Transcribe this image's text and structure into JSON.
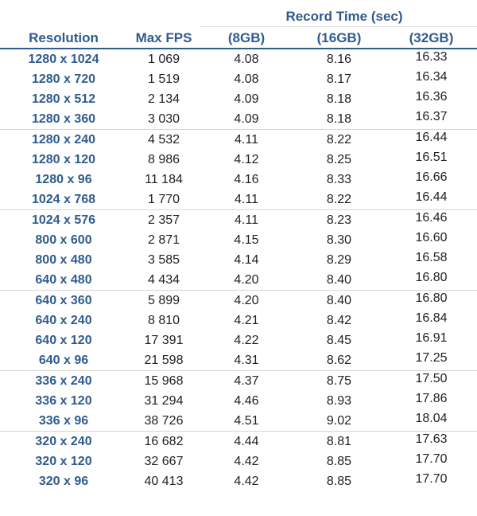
{
  "header": {
    "super_label": "Record Time (sec)",
    "columns": [
      "Resolution",
      "Max FPS",
      "(8GB)",
      "(16GB)",
      "(32GB)"
    ]
  },
  "colors": {
    "header_text": "#2f5b8f",
    "resolution_text": "#2f5b8f",
    "body_text": "#1f1f1f",
    "divider": "#d4d4d4"
  },
  "rows": [
    {
      "resolution": "1280 x 1024",
      "fps": "1 069",
      "t8": "4.08",
      "t16": "8.16",
      "t32": "16.33",
      "group_end": false
    },
    {
      "resolution": "1280 x 720",
      "fps": "1 519",
      "t8": "4.08",
      "t16": "8.17",
      "t32": "16.34",
      "group_end": false
    },
    {
      "resolution": "1280 x 512",
      "fps": "2 134",
      "t8": "4.09",
      "t16": "8.18",
      "t32": "16.36",
      "group_end": false
    },
    {
      "resolution": "1280 x 360",
      "fps": "3 030",
      "t8": "4.09",
      "t16": "8.18",
      "t32": "16.37",
      "group_end": true
    },
    {
      "resolution": "1280 x 240",
      "fps": "4 532",
      "t8": "4.11",
      "t16": "8.22",
      "t32": "16.44",
      "group_end": false
    },
    {
      "resolution": "1280 x 120",
      "fps": "8 986",
      "t8": "4.12",
      "t16": "8.25",
      "t32": "16.51",
      "group_end": false
    },
    {
      "resolution": "1280 x 96",
      "fps": "11 184",
      "t8": "4.16",
      "t16": "8.33",
      "t32": "16.66",
      "group_end": false
    },
    {
      "resolution": "1024 x 768",
      "fps": "1 770",
      "t8": "4.11",
      "t16": "8.22",
      "t32": "16.44",
      "group_end": true
    },
    {
      "resolution": "1024 x 576",
      "fps": "2 357",
      "t8": "4.11",
      "t16": "8.23",
      "t32": "16.46",
      "group_end": false
    },
    {
      "resolution": "800 x 600",
      "fps": "2 871",
      "t8": "4.15",
      "t16": "8.30",
      "t32": "16.60",
      "group_end": false
    },
    {
      "resolution": "800 x 480",
      "fps": "3 585",
      "t8": "4.14",
      "t16": "8.29",
      "t32": "16.58",
      "group_end": false
    },
    {
      "resolution": "640 x 480",
      "fps": "4 434",
      "t8": "4.20",
      "t16": "8.40",
      "t32": "16.80",
      "group_end": true
    },
    {
      "resolution": "640 x 360",
      "fps": "5 899",
      "t8": "4.20",
      "t16": "8.40",
      "t32": "16.80",
      "group_end": false
    },
    {
      "resolution": "640 x 240",
      "fps": "8 810",
      "t8": "4.21",
      "t16": "8.42",
      "t32": "16.84",
      "group_end": false
    },
    {
      "resolution": "640 x 120",
      "fps": "17 391",
      "t8": "4.22",
      "t16": "8.45",
      "t32": "16.91",
      "group_end": false
    },
    {
      "resolution": "640 x 96",
      "fps": "21 598",
      "t8": "4.31",
      "t16": "8.62",
      "t32": "17.25",
      "group_end": true
    },
    {
      "resolution": "336 x 240",
      "fps": "15 968",
      "t8": "4.37",
      "t16": "8.75",
      "t32": "17.50",
      "group_end": false
    },
    {
      "resolution": "336 x 120",
      "fps": "31 294",
      "t8": "4.46",
      "t16": "8.93",
      "t32": "17.86",
      "group_end": false
    },
    {
      "resolution": "336 x 96",
      "fps": "38 726",
      "t8": "4.51",
      "t16": "9.02",
      "t32": "18.04",
      "group_end": true
    },
    {
      "resolution": "320 x 240",
      "fps": "16 682",
      "t8": "4.44",
      "t16": "8.81",
      "t32": "17.63",
      "group_end": false
    },
    {
      "resolution": "320 x 120",
      "fps": "32 667",
      "t8": "4.42",
      "t16": "8.85",
      "t32": "17.70",
      "group_end": false
    },
    {
      "resolution": "320 x 96",
      "fps": "40 413",
      "t8": "4.42",
      "t16": "8.85",
      "t32": "17.70",
      "group_end": false
    }
  ]
}
